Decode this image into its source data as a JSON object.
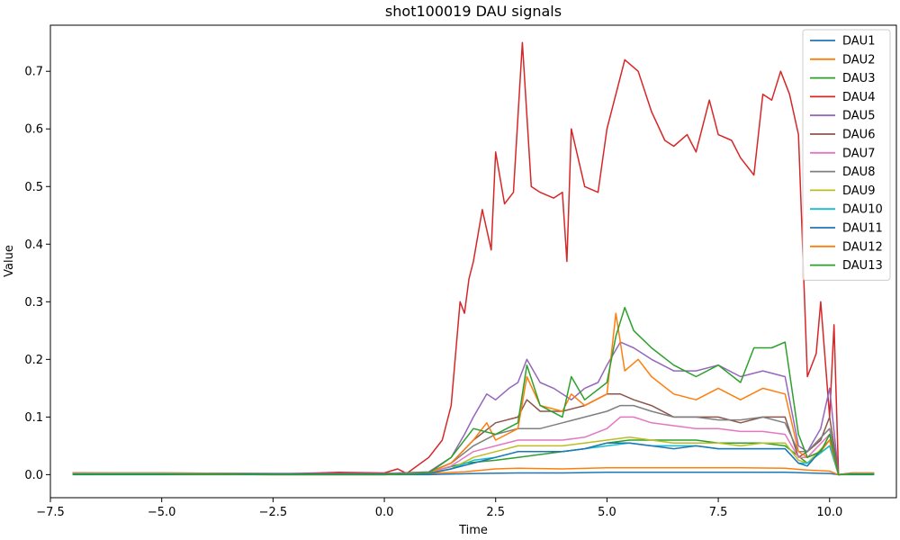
{
  "chart_data": {
    "type": "line",
    "title": "shot100019 DAU signals",
    "xlabel": "Time",
    "ylabel": "Value",
    "xlim": [
      -7.5,
      11.5
    ],
    "ylim": [
      -0.04,
      0.78
    ],
    "xticks": [
      -7.5,
      -5.0,
      -2.5,
      0.0,
      2.5,
      5.0,
      7.5,
      10.0
    ],
    "xtick_labels": [
      "−7.5",
      "−5.0",
      "−2.5",
      "0.0",
      "2.5",
      "5.0",
      "7.5",
      "10.0"
    ],
    "yticks": [
      0.0,
      0.1,
      0.2,
      0.3,
      0.4,
      0.5,
      0.6,
      0.7
    ],
    "ytick_labels": [
      "0.0",
      "0.1",
      "0.2",
      "0.3",
      "0.4",
      "0.5",
      "0.6",
      "0.7"
    ],
    "legend_position": "top-right",
    "grid": false,
    "series": [
      {
        "name": "DAU1",
        "color": "#1f77b4",
        "x": [
          -7,
          -5,
          -2.5,
          0,
          1,
          2,
          3,
          4,
          5,
          6,
          7,
          8,
          9,
          9.5,
          10,
          10.2,
          10.5,
          11
        ],
        "y": [
          0.0,
          0.0,
          0.0,
          0.0,
          0.0,
          0.002,
          0.003,
          0.003,
          0.004,
          0.004,
          0.004,
          0.004,
          0.004,
          0.003,
          0.002,
          0.0,
          0.0,
          0.0
        ]
      },
      {
        "name": "DAU2",
        "color": "#ff7f0e",
        "x": [
          -7,
          -5,
          -2.5,
          0,
          1,
          1.8,
          2.5,
          3,
          4,
          5,
          6,
          7,
          8,
          9,
          9.5,
          10,
          10.2,
          10.5,
          11
        ],
        "y": [
          0.002,
          0.002,
          0.001,
          0.001,
          0.002,
          0.005,
          0.01,
          0.011,
          0.01,
          0.012,
          0.012,
          0.012,
          0.012,
          0.011,
          0.008,
          0.006,
          0.0,
          0.002,
          0.002
        ]
      },
      {
        "name": "DAU3",
        "color": "#2ca02c",
        "x": [
          -7,
          -5,
          -2.5,
          0,
          1,
          1.8,
          2.5,
          3,
          3.5,
          4,
          4.5,
          5,
          5.5,
          6,
          6.5,
          7,
          7.5,
          8,
          8.5,
          9,
          9.5,
          10,
          10.2,
          10.5,
          11
        ],
        "y": [
          0.003,
          0.003,
          0.002,
          0.002,
          0.004,
          0.02,
          0.025,
          0.03,
          0.035,
          0.04,
          0.045,
          0.055,
          0.06,
          0.06,
          0.06,
          0.06,
          0.055,
          0.055,
          0.055,
          0.05,
          0.02,
          0.05,
          0.0,
          0.002,
          0.002
        ]
      },
      {
        "name": "DAU4",
        "color": "#d62728",
        "x": [
          -7,
          -5,
          -2.5,
          -1.5,
          -1,
          0,
          0.3,
          0.5,
          1,
          1.3,
          1.5,
          1.7,
          1.8,
          1.9,
          2,
          2.2,
          2.4,
          2.5,
          2.7,
          2.9,
          3.1,
          3.3,
          3.5,
          3.8,
          4,
          4.1,
          4.2,
          4.5,
          4.8,
          5,
          5.2,
          5.4,
          5.7,
          6,
          6.3,
          6.5,
          6.8,
          7,
          7.3,
          7.5,
          7.8,
          8,
          8.3,
          8.5,
          8.7,
          8.9,
          9.1,
          9.3,
          9.5,
          9.7,
          9.8,
          10,
          10.1,
          10.2,
          10.5,
          11
        ],
        "y": [
          0.003,
          0.002,
          0.001,
          0.003,
          0.004,
          0.003,
          0.01,
          0.002,
          0.03,
          0.06,
          0.12,
          0.3,
          0.28,
          0.34,
          0.37,
          0.46,
          0.39,
          0.56,
          0.47,
          0.49,
          0.75,
          0.5,
          0.49,
          0.48,
          0.49,
          0.37,
          0.6,
          0.5,
          0.49,
          0.6,
          0.66,
          0.72,
          0.7,
          0.63,
          0.58,
          0.57,
          0.59,
          0.56,
          0.65,
          0.59,
          0.58,
          0.55,
          0.52,
          0.66,
          0.65,
          0.7,
          0.66,
          0.59,
          0.17,
          0.21,
          0.3,
          0.1,
          0.26,
          0.0,
          0.003,
          0.003
        ]
      },
      {
        "name": "DAU5",
        "color": "#9467bd",
        "x": [
          -7,
          -5,
          -2.5,
          0,
          1,
          1.5,
          1.8,
          2,
          2.3,
          2.5,
          2.8,
          3,
          3.2,
          3.5,
          3.8,
          4,
          4.2,
          4.5,
          4.8,
          5,
          5.3,
          5.6,
          6,
          6.5,
          7,
          7.5,
          8,
          8.5,
          9,
          9.3,
          9.5,
          9.8,
          10,
          10.2,
          10.5,
          11
        ],
        "y": [
          0.003,
          0.003,
          0.002,
          0.002,
          0.005,
          0.03,
          0.07,
          0.1,
          0.14,
          0.13,
          0.15,
          0.16,
          0.2,
          0.16,
          0.15,
          0.14,
          0.13,
          0.15,
          0.16,
          0.19,
          0.23,
          0.22,
          0.2,
          0.18,
          0.18,
          0.19,
          0.17,
          0.18,
          0.17,
          0.05,
          0.04,
          0.08,
          0.15,
          0.0,
          0.002,
          0.002
        ]
      },
      {
        "name": "DAU6",
        "color": "#8c564b",
        "x": [
          -7,
          -5,
          -2.5,
          0,
          1,
          1.5,
          2,
          2.5,
          3,
          3.2,
          3.5,
          4,
          4.5,
          5,
          5.3,
          5.6,
          6,
          6.5,
          7,
          7.5,
          8,
          8.5,
          9,
          9.3,
          9.5,
          9.8,
          10,
          10.2,
          10.5,
          11
        ],
        "y": [
          0.002,
          0.002,
          0.001,
          0.001,
          0.004,
          0.02,
          0.06,
          0.09,
          0.1,
          0.13,
          0.11,
          0.11,
          0.12,
          0.14,
          0.14,
          0.13,
          0.12,
          0.1,
          0.1,
          0.1,
          0.09,
          0.1,
          0.1,
          0.03,
          0.04,
          0.06,
          0.1,
          0.0,
          0.002,
          0.002
        ]
      },
      {
        "name": "DAU7",
        "color": "#e377c2",
        "x": [
          -7,
          -5,
          -2.5,
          0,
          1,
          1.5,
          2,
          2.5,
          3,
          3.5,
          4,
          4.5,
          5,
          5.3,
          5.6,
          6,
          6.5,
          7,
          7.5,
          8,
          8.5,
          9,
          9.3,
          9.5,
          10,
          10.2,
          10.5,
          11
        ],
        "y": [
          0.002,
          0.002,
          0.001,
          0.001,
          0.003,
          0.015,
          0.04,
          0.05,
          0.06,
          0.06,
          0.06,
          0.065,
          0.08,
          0.1,
          0.1,
          0.09,
          0.085,
          0.08,
          0.08,
          0.075,
          0.075,
          0.07,
          0.03,
          0.03,
          0.07,
          0.0,
          0.002,
          0.002
        ]
      },
      {
        "name": "DAU8",
        "color": "#7f7f7f",
        "x": [
          -7,
          -5,
          -2.5,
          0,
          1,
          1.5,
          2,
          2.5,
          3,
          3.5,
          4,
          4.5,
          5,
          5.3,
          5.6,
          6,
          6.5,
          7,
          7.5,
          8,
          8.5,
          9,
          9.3,
          9.5,
          10,
          10.2,
          10.5,
          11
        ],
        "y": [
          0.002,
          0.002,
          0.001,
          0.001,
          0.004,
          0.02,
          0.05,
          0.07,
          0.08,
          0.08,
          0.09,
          0.1,
          0.11,
          0.12,
          0.12,
          0.11,
          0.1,
          0.1,
          0.095,
          0.095,
          0.1,
          0.09,
          0.04,
          0.04,
          0.08,
          0.0,
          0.002,
          0.002
        ]
      },
      {
        "name": "DAU9",
        "color": "#bcbd22",
        "x": [
          -7,
          -5,
          -2.5,
          0,
          1,
          1.5,
          2,
          2.5,
          3,
          3.5,
          4,
          4.5,
          5,
          5.5,
          6,
          6.5,
          7,
          7.5,
          8,
          8.5,
          9,
          9.3,
          9.5,
          10,
          10.2,
          10.5,
          11
        ],
        "y": [
          0.002,
          0.002,
          0.001,
          0.001,
          0.003,
          0.01,
          0.03,
          0.04,
          0.05,
          0.05,
          0.05,
          0.055,
          0.06,
          0.065,
          0.06,
          0.055,
          0.055,
          0.055,
          0.05,
          0.055,
          0.055,
          0.025,
          0.02,
          0.06,
          0.0,
          0.002,
          0.002
        ]
      },
      {
        "name": "DAU10",
        "color": "#17becf",
        "x": [
          -7,
          -5,
          -2.5,
          0,
          1,
          1.5,
          2,
          2.5,
          3,
          3.5,
          4,
          4.5,
          5,
          5.5,
          6,
          6.5,
          7,
          7.5,
          8,
          8.5,
          9,
          9.3,
          9.5,
          10,
          10.2,
          10.5,
          11
        ],
        "y": [
          0.001,
          0.001,
          0.001,
          0.001,
          0.002,
          0.01,
          0.025,
          0.03,
          0.04,
          0.04,
          0.04,
          0.045,
          0.05,
          0.055,
          0.05,
          0.05,
          0.05,
          0.045,
          0.045,
          0.045,
          0.045,
          0.02,
          0.02,
          0.05,
          0.0,
          0.001,
          0.001
        ]
      },
      {
        "name": "DAU11",
        "color": "#1f77b4",
        "x": [
          -7,
          -5,
          -2.5,
          0,
          1,
          1.5,
          2,
          2.5,
          3,
          3.5,
          4,
          4.5,
          5,
          5.5,
          6,
          6.5,
          7,
          7.5,
          8,
          8.5,
          9,
          9.3,
          9.5,
          10,
          10.2,
          10.5,
          11
        ],
        "y": [
          0.001,
          0.001,
          0.001,
          0.001,
          0.002,
          0.01,
          0.02,
          0.03,
          0.04,
          0.04,
          0.04,
          0.045,
          0.055,
          0.055,
          0.05,
          0.045,
          0.05,
          0.045,
          0.045,
          0.045,
          0.045,
          0.02,
          0.015,
          0.06,
          0.0,
          0.001,
          0.001
        ]
      },
      {
        "name": "DAU12",
        "color": "#ff7f0e",
        "x": [
          -7,
          -5,
          -2.5,
          0,
          1,
          1.5,
          2,
          2.3,
          2.5,
          3,
          3.2,
          3.5,
          4,
          4.2,
          4.5,
          5,
          5.2,
          5.4,
          5.7,
          6,
          6.5,
          7,
          7.5,
          8,
          8.5,
          9,
          9.3,
          9.5,
          9.8,
          10,
          10.2,
          10.5,
          11
        ],
        "y": [
          0.001,
          0.001,
          0.0,
          0.0,
          0.003,
          0.02,
          0.06,
          0.09,
          0.06,
          0.08,
          0.17,
          0.12,
          0.11,
          0.14,
          0.12,
          0.14,
          0.28,
          0.18,
          0.2,
          0.17,
          0.14,
          0.13,
          0.15,
          0.13,
          0.15,
          0.14,
          0.04,
          0.03,
          0.04,
          0.06,
          0.0,
          0.001,
          0.001
        ]
      },
      {
        "name": "DAU13",
        "color": "#2ca02c",
        "x": [
          -7,
          -5,
          -2.5,
          0,
          1,
          1.5,
          2,
          2.5,
          3,
          3.2,
          3.5,
          4,
          4.2,
          4.5,
          5,
          5.2,
          5.4,
          5.6,
          6,
          6.5,
          7,
          7.5,
          8,
          8.3,
          8.7,
          9,
          9.3,
          9.5,
          9.8,
          10,
          10.2,
          10.5,
          11
        ],
        "y": [
          0.001,
          0.001,
          0.0,
          0.0,
          0.003,
          0.03,
          0.08,
          0.07,
          0.09,
          0.19,
          0.12,
          0.1,
          0.17,
          0.13,
          0.16,
          0.24,
          0.29,
          0.25,
          0.22,
          0.19,
          0.17,
          0.19,
          0.16,
          0.22,
          0.22,
          0.23,
          0.07,
          0.03,
          0.04,
          0.07,
          0.0,
          0.001,
          0.001
        ]
      }
    ]
  }
}
